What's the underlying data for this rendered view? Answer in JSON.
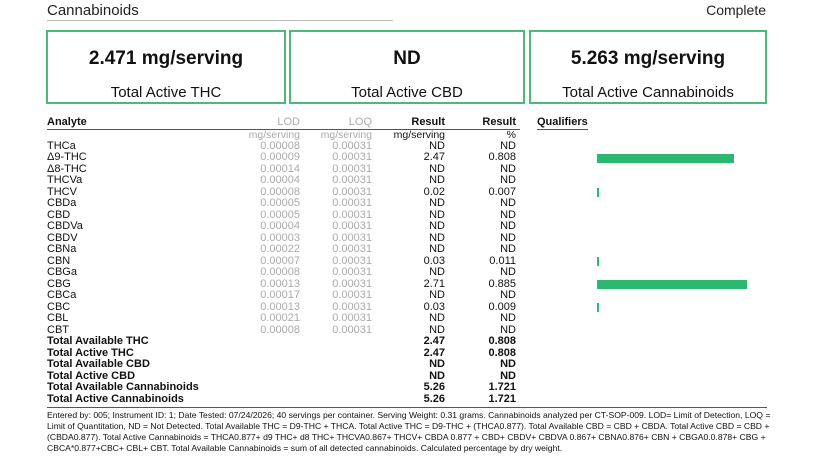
{
  "header": {
    "title": "Cannabinoids",
    "status": "Complete"
  },
  "summary": [
    {
      "value": "2.471 mg/serving",
      "label": "Total Active THC"
    },
    {
      "value": "ND",
      "label": "Total Active CBD"
    },
    {
      "value": "5.263 mg/serving",
      "label": "Total Active Cannabinoids"
    }
  ],
  "table": {
    "headers": {
      "analyte": "Analyte",
      "lod": "LOD",
      "loq": "LOQ",
      "result": "Result",
      "result_pct": "Result",
      "qualifiers": "Qualifiers"
    },
    "units": {
      "lod": "mg/serving",
      "loq": "mg/serving",
      "result": "mg/serving",
      "result_pct": "%"
    },
    "accent_color": "#2db871",
    "rows": [
      {
        "analyte": "THCa",
        "lod": "0.00008",
        "loq": "0.00031",
        "result": "ND",
        "pct": "ND",
        "fraction": 0
      },
      {
        "analyte": "Δ9-THC",
        "lod": "0.00009",
        "loq": "0.00031",
        "result": "2.47",
        "pct": "0.808",
        "fraction": 0.808
      },
      {
        "analyte": "Δ8-THC",
        "lod": "0.00014",
        "loq": "0.00031",
        "result": "ND",
        "pct": "ND",
        "fraction": 0
      },
      {
        "analyte": "THCVa",
        "lod": "0.00004",
        "loq": "0.00031",
        "result": "ND",
        "pct": "ND",
        "fraction": 0
      },
      {
        "analyte": "THCV",
        "lod": "0.00008",
        "loq": "0.00031",
        "result": "0.02",
        "pct": "0.007",
        "fraction": 0.007
      },
      {
        "analyte": "CBDa",
        "lod": "0.00005",
        "loq": "0.00031",
        "result": "ND",
        "pct": "ND",
        "fraction": 0
      },
      {
        "analyte": "CBD",
        "lod": "0.00005",
        "loq": "0.00031",
        "result": "ND",
        "pct": "ND",
        "fraction": 0
      },
      {
        "analyte": "CBDVa",
        "lod": "0.00004",
        "loq": "0.00031",
        "result": "ND",
        "pct": "ND",
        "fraction": 0
      },
      {
        "analyte": "CBDV",
        "lod": "0.00003",
        "loq": "0.00031",
        "result": "ND",
        "pct": "ND",
        "fraction": 0
      },
      {
        "analyte": "CBNa",
        "lod": "0.00022",
        "loq": "0.00031",
        "result": "ND",
        "pct": "ND",
        "fraction": 0
      },
      {
        "analyte": "CBN",
        "lod": "0.00007",
        "loq": "0.00031",
        "result": "0.03",
        "pct": "0.011",
        "fraction": 0.011
      },
      {
        "analyte": "CBGa",
        "lod": "0.00008",
        "loq": "0.00031",
        "result": "ND",
        "pct": "ND",
        "fraction": 0
      },
      {
        "analyte": "CBG",
        "lod": "0.00013",
        "loq": "0.00031",
        "result": "2.71",
        "pct": "0.885",
        "fraction": 0.885
      },
      {
        "analyte": "CBCa",
        "lod": "0.00017",
        "loq": "0.00031",
        "result": "ND",
        "pct": "ND",
        "fraction": 0
      },
      {
        "analyte": "CBC",
        "lod": "0.00013",
        "loq": "0.00031",
        "result": "0.03",
        "pct": "0.009",
        "fraction": 0.009
      },
      {
        "analyte": "CBL",
        "lod": "0.00021",
        "loq": "0.00031",
        "result": "ND",
        "pct": "ND",
        "fraction": 0
      },
      {
        "analyte": "CBT",
        "lod": "0.00008",
        "loq": "0.00031",
        "result": "ND",
        "pct": "ND",
        "fraction": 0
      }
    ],
    "totals": [
      {
        "analyte": "Total Available THC",
        "result": "2.47",
        "pct": "0.808"
      },
      {
        "analyte": "Total Active THC",
        "result": "2.47",
        "pct": "0.808"
      },
      {
        "analyte": "Total Available CBD",
        "result": "ND",
        "pct": "ND"
      },
      {
        "analyte": "Total Active CBD",
        "result": "ND",
        "pct": "ND"
      },
      {
        "analyte": "Total Available Cannabinoids",
        "result": "5.26",
        "pct": "1.721"
      },
      {
        "analyte": "Total Active Cannabinoids",
        "result": "5.26",
        "pct": "1.721"
      }
    ]
  },
  "footnote": "Entered by: 005; Instrument ID: 1; Date Tested: 07/24/2026; 40 servings per container. Serving Weight: 0.31 grams. Cannabinoids analyzed per CT-SOP-009. LOD= Limit of Detection, LOQ = Limit of Quantitation, ND = Not Detected. Total Available THC = D9-THC + THCA. Total Active THC = D9-THC + (THCA0.877). Total Available CBD = CBD + CBDA. Total Active CBD = CBD +(CBDA0.877). Total Active Cannabinoids = THCA0.877+ d9 THC+ d8 THC+ THCVA0.867+ THCV+ CBDA 0.877 + CBD+ CBDV+ CBDVA 0.867+ CBNA0.876+ CBN + CBGA0.0.878+ CBG + CBCA*0.877+CBC+ CBL+ CBT. Total Available Cannabinoids = sum of all detected cannabinoids. Calculated percentage by dry weight."
}
